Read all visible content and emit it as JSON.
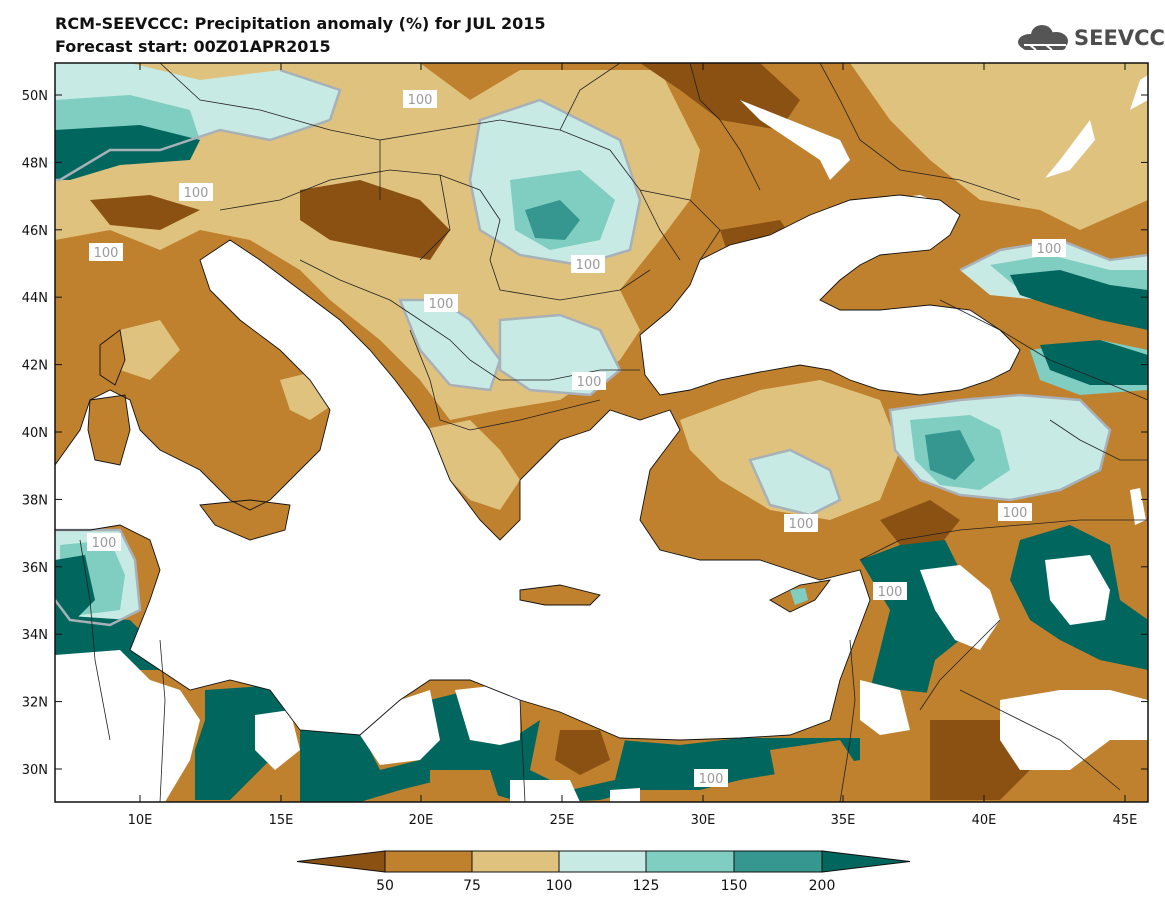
{
  "title": {
    "line1": "RCM-SEEVCCC: Precipitation anomaly (%) for JUL 2015",
    "line2": "Forecast start: 00Z01APR2015"
  },
  "logo": {
    "text": "SEEVCCC",
    "icon": "cloud-icon"
  },
  "colors": {
    "dry_extreme": "#8a5113",
    "dry": "#bf812d",
    "slightly_dry": "#dfc27d",
    "slightly_wet": "#c7eae5",
    "wet": "#80cdc1",
    "very_wet": "#35978f",
    "wet_extreme": "#01665e",
    "sea": "#ffffff",
    "contour": "#a0a8b0"
  },
  "axes": {
    "lon_ticks": [
      "10E",
      "15E",
      "20E",
      "25E",
      "30E",
      "35E",
      "40E",
      "45E"
    ],
    "lat_ticks": [
      "30N",
      "32N",
      "34N",
      "36N",
      "38N",
      "40N",
      "42N",
      "44N",
      "46N",
      "48N",
      "50N"
    ]
  },
  "contour_labels": [
    "100",
    "100",
    "100",
    "100",
    "100",
    "100",
    "100",
    "100",
    "100",
    "100",
    "100",
    "100",
    "100"
  ],
  "colorbar": {
    "labels": [
      "50",
      "75",
      "100",
      "125",
      "150",
      "200"
    ]
  }
}
